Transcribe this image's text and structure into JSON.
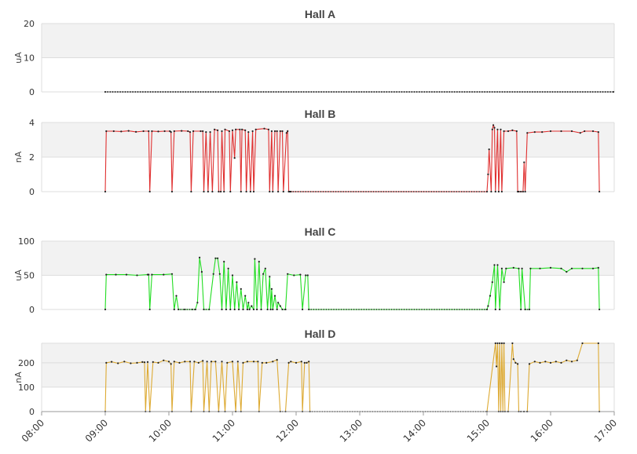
{
  "chart_data": {
    "type": "line",
    "x_axis": {
      "range": [
        "08:00",
        "17:00"
      ],
      "tick_labels": [
        "08:00",
        "09:00",
        "10:00",
        "11:00",
        "12:00",
        "13:00",
        "14:00",
        "15:00",
        "16:00",
        "17:00"
      ]
    },
    "grid": "alternating horizontal bands",
    "panels": [
      {
        "title": "Hall A",
        "ylabel": "uA",
        "ylim": [
          0,
          20
        ],
        "yticks": [
          "0",
          "10",
          "20"
        ],
        "color": "#888888",
        "points": [
          [
            "09:00",
            0
          ],
          [
            "17:00",
            0
          ]
        ]
      },
      {
        "title": "Hall B",
        "ylabel": "nA",
        "ylim": [
          0,
          4
        ],
        "yticks": [
          "0",
          "2",
          "4"
        ],
        "color": "#e03030",
        "points": [
          [
            "09:00",
            0
          ],
          [
            "09:01",
            3.5
          ],
          [
            "09:08",
            3.5
          ],
          [
            "09:15",
            3.48
          ],
          [
            "09:22",
            3.52
          ],
          [
            "09:29",
            3.46
          ],
          [
            "09:36",
            3.5
          ],
          [
            "09:41",
            3.5
          ],
          [
            "09:42",
            0
          ],
          [
            "09:44",
            3.5
          ],
          [
            "09:50",
            3.48
          ],
          [
            "09:56",
            3.5
          ],
          [
            "10:01",
            3.5
          ],
          [
            "10:02",
            3.45
          ],
          [
            "10:03",
            0
          ],
          [
            "10:05",
            3.5
          ],
          [
            "10:12",
            3.52
          ],
          [
            "10:18",
            3.5
          ],
          [
            "10:20",
            3.45
          ],
          [
            "10:21",
            0
          ],
          [
            "10:23",
            3.5
          ],
          [
            "10:30",
            3.5
          ],
          [
            "10:32",
            3.5
          ],
          [
            "10:33",
            0
          ],
          [
            "10:35",
            3.45
          ],
          [
            "10:37",
            0
          ],
          [
            "10:39",
            3.45
          ],
          [
            "10:41",
            0
          ],
          [
            "10:43",
            3.6
          ],
          [
            "10:46",
            3.55
          ],
          [
            "10:47",
            0
          ],
          [
            "10:49",
            0
          ],
          [
            "10:50",
            3.5
          ],
          [
            "10:52",
            0
          ],
          [
            "10:53",
            3.6
          ],
          [
            "10:57",
            3.5
          ],
          [
            "10:58",
            0
          ],
          [
            "11:00",
            3.55
          ],
          [
            "11:02",
            1.95
          ],
          [
            "11:03",
            3.6
          ],
          [
            "11:07",
            3.6
          ],
          [
            "11:08",
            0
          ],
          [
            "11:09",
            3.6
          ],
          [
            "11:12",
            3.55
          ],
          [
            "11:13",
            0
          ],
          [
            "11:15",
            3.45
          ],
          [
            "11:17",
            0
          ],
          [
            "11:19",
            3.5
          ],
          [
            "11:20",
            0
          ],
          [
            "11:22",
            3.6
          ],
          [
            "11:30",
            3.65
          ],
          [
            "11:34",
            3.6
          ],
          [
            "11:35",
            0
          ],
          [
            "11:37",
            3.5
          ],
          [
            "11:38",
            0
          ],
          [
            "11:40",
            3.5
          ],
          [
            "11:42",
            3.5
          ],
          [
            "11:43",
            0
          ],
          [
            "11:45",
            3.5
          ],
          [
            "11:47",
            3.5
          ],
          [
            "11:48",
            0
          ],
          [
            "11:51",
            3.4
          ],
          [
            "11:52",
            3.5
          ],
          [
            "11:53",
            0
          ],
          [
            "11:54",
            0
          ],
          [
            "11:55",
            0
          ],
          [
            "15:00",
            0
          ],
          [
            "15:01",
            1.0
          ],
          [
            "15:02",
            2.45
          ],
          [
            "15:04",
            0
          ],
          [
            "15:05",
            3.6
          ],
          [
            "15:06",
            3.85
          ],
          [
            "15:07",
            3.7
          ],
          [
            "15:08",
            0
          ],
          [
            "15:10",
            3.6
          ],
          [
            "15:11",
            0
          ],
          [
            "15:13",
            3.6
          ],
          [
            "15:14",
            0
          ],
          [
            "15:16",
            3.5
          ],
          [
            "15:20",
            3.5
          ],
          [
            "15:24",
            3.55
          ],
          [
            "15:28",
            3.5
          ],
          [
            "15:29",
            0
          ],
          [
            "15:30",
            0
          ],
          [
            "15:32",
            0
          ],
          [
            "15:34",
            0
          ],
          [
            "15:35",
            1.7
          ],
          [
            "15:36",
            0
          ],
          [
            "15:38",
            3.4
          ],
          [
            "15:45",
            3.45
          ],
          [
            "15:52",
            3.45
          ],
          [
            "16:00",
            3.5
          ],
          [
            "16:10",
            3.5
          ],
          [
            "16:20",
            3.5
          ],
          [
            "16:28",
            3.4
          ],
          [
            "16:32",
            3.5
          ],
          [
            "16:40",
            3.5
          ],
          [
            "16:45",
            3.45
          ],
          [
            "16:46",
            0
          ]
        ]
      },
      {
        "title": "Hall C",
        "ylabel": "uA",
        "ylim": [
          0,
          100
        ],
        "yticks": [
          "0",
          "50",
          "100"
        ],
        "color": "#22dd22",
        "points": [
          [
            "09:00",
            0
          ],
          [
            "09:01",
            51
          ],
          [
            "09:10",
            51
          ],
          [
            "09:20",
            51
          ],
          [
            "09:30",
            50
          ],
          [
            "09:40",
            51
          ],
          [
            "09:41",
            51
          ],
          [
            "09:42",
            0
          ],
          [
            "09:44",
            51
          ],
          [
            "09:55",
            51
          ],
          [
            "10:03",
            52
          ],
          [
            "10:05",
            0
          ],
          [
            "10:07",
            20
          ],
          [
            "10:09",
            0
          ],
          [
            "10:15",
            0
          ],
          [
            "10:22",
            0
          ],
          [
            "10:25",
            0
          ],
          [
            "10:27",
            10
          ],
          [
            "10:29",
            76
          ],
          [
            "10:31",
            55
          ],
          [
            "10:33",
            0
          ],
          [
            "10:38",
            0
          ],
          [
            "10:42",
            52
          ],
          [
            "10:44",
            75
          ],
          [
            "10:46",
            75
          ],
          [
            "10:48",
            52
          ],
          [
            "10:50",
            0
          ],
          [
            "10:52",
            70
          ],
          [
            "10:54",
            0
          ],
          [
            "10:56",
            60
          ],
          [
            "10:58",
            0
          ],
          [
            "11:00",
            50
          ],
          [
            "11:02",
            0
          ],
          [
            "11:04",
            40
          ],
          [
            "11:06",
            0
          ],
          [
            "11:08",
            30
          ],
          [
            "11:10",
            0
          ],
          [
            "11:12",
            20
          ],
          [
            "11:14",
            0
          ],
          [
            "11:15",
            10
          ],
          [
            "11:16",
            0
          ],
          [
            "11:18",
            5
          ],
          [
            "11:20",
            0
          ],
          [
            "11:21",
            74
          ],
          [
            "11:23",
            0
          ],
          [
            "11:25",
            70
          ],
          [
            "11:27",
            0
          ],
          [
            "11:29",
            52
          ],
          [
            "11:31",
            60
          ],
          [
            "11:33",
            0
          ],
          [
            "11:35",
            48
          ],
          [
            "11:36",
            0
          ],
          [
            "11:37",
            30
          ],
          [
            "11:38",
            0
          ],
          [
            "11:40",
            20
          ],
          [
            "11:42",
            0
          ],
          [
            "11:43",
            10
          ],
          [
            "11:45",
            5
          ],
          [
            "11:47",
            0
          ],
          [
            "11:50",
            0
          ],
          [
            "11:52",
            52
          ],
          [
            "11:58",
            50
          ],
          [
            "12:04",
            51
          ],
          [
            "12:06",
            0
          ],
          [
            "12:09",
            50
          ],
          [
            "12:11",
            50
          ],
          [
            "12:12",
            0
          ],
          [
            "15:00",
            0
          ],
          [
            "15:01",
            5
          ],
          [
            "15:03",
            20
          ],
          [
            "15:05",
            40
          ],
          [
            "15:07",
            65
          ],
          [
            "15:08",
            0
          ],
          [
            "15:10",
            65
          ],
          [
            "15:12",
            0
          ],
          [
            "15:14",
            60
          ],
          [
            "15:16",
            40
          ],
          [
            "15:18",
            60
          ],
          [
            "15:25",
            61
          ],
          [
            "15:30",
            60
          ],
          [
            "15:32",
            0
          ],
          [
            "15:33",
            60
          ],
          [
            "15:36",
            0
          ],
          [
            "15:40",
            0
          ],
          [
            "15:41",
            60
          ],
          [
            "15:50",
            60
          ],
          [
            "16:00",
            61
          ],
          [
            "16:10",
            60
          ],
          [
            "16:15",
            55
          ],
          [
            "16:20",
            60
          ],
          [
            "16:30",
            60
          ],
          [
            "16:40",
            60
          ],
          [
            "16:45",
            61
          ],
          [
            "16:46",
            0
          ]
        ]
      },
      {
        "title": "Hall D",
        "ylabel": "nA",
        "ylim": [
          0,
          280
        ],
        "yticks": [
          "0",
          "100",
          "200"
        ],
        "color": "#ddaa33",
        "points": [
          [
            "09:00",
            0
          ],
          [
            "09:01",
            200
          ],
          [
            "09:06",
            204
          ],
          [
            "09:12",
            198
          ],
          [
            "09:18",
            205
          ],
          [
            "09:24",
            198
          ],
          [
            "09:30",
            200
          ],
          [
            "09:35",
            203
          ],
          [
            "09:37",
            202
          ],
          [
            "09:38",
            0
          ],
          [
            "09:40",
            203
          ],
          [
            "09:42",
            0
          ],
          [
            "09:45",
            203
          ],
          [
            "09:50",
            200
          ],
          [
            "09:55",
            210
          ],
          [
            "10:00",
            205
          ],
          [
            "10:02",
            195
          ],
          [
            "10:03",
            0
          ],
          [
            "10:05",
            205
          ],
          [
            "10:10",
            200
          ],
          [
            "10:15",
            205
          ],
          [
            "10:20",
            205
          ],
          [
            "10:21",
            0
          ],
          [
            "10:24",
            205
          ],
          [
            "10:28",
            200
          ],
          [
            "10:32",
            208
          ],
          [
            "10:33",
            0
          ],
          [
            "10:36",
            205
          ],
          [
            "10:38",
            0
          ],
          [
            "10:40",
            205
          ],
          [
            "10:44",
            205
          ],
          [
            "10:47",
            0
          ],
          [
            "10:50",
            205
          ],
          [
            "10:53",
            0
          ],
          [
            "10:55",
            200
          ],
          [
            "11:00",
            205
          ],
          [
            "11:03",
            0
          ],
          [
            "11:05",
            205
          ],
          [
            "11:08",
            0
          ],
          [
            "11:10",
            200
          ],
          [
            "11:14",
            205
          ],
          [
            "11:20",
            205
          ],
          [
            "11:24",
            205
          ],
          [
            "11:25",
            0
          ],
          [
            "11:28",
            200
          ],
          [
            "11:32",
            200
          ],
          [
            "11:38",
            205
          ],
          [
            "11:42",
            212
          ],
          [
            "11:45",
            0
          ],
          [
            "11:50",
            0
          ],
          [
            "11:53",
            200
          ],
          [
            "11:55",
            205
          ],
          [
            "12:00",
            200
          ],
          [
            "12:05",
            205
          ],
          [
            "12:06",
            0
          ],
          [
            "12:08",
            200
          ],
          [
            "12:10",
            200
          ],
          [
            "12:12",
            205
          ],
          [
            "12:13",
            0
          ],
          [
            "15:00",
            0
          ],
          [
            "15:08",
            280
          ],
          [
            "15:09",
            185
          ],
          [
            "15:10",
            280
          ],
          [
            "15:11",
            0
          ],
          [
            "15:12",
            280
          ],
          [
            "15:13",
            0
          ],
          [
            "15:14",
            280
          ],
          [
            "15:15",
            0
          ],
          [
            "15:16",
            280
          ],
          [
            "15:17",
            0
          ],
          [
            "15:20",
            0
          ],
          [
            "15:24",
            280
          ],
          [
            "15:25",
            215
          ],
          [
            "15:27",
            200
          ],
          [
            "15:29",
            195
          ],
          [
            "15:30",
            0
          ],
          [
            "15:32",
            0
          ],
          [
            "15:35",
            0
          ],
          [
            "15:38",
            0
          ],
          [
            "15:40",
            195
          ],
          [
            "15:45",
            205
          ],
          [
            "15:50",
            200
          ],
          [
            "15:55",
            205
          ],
          [
            "16:00",
            200
          ],
          [
            "16:05",
            205
          ],
          [
            "16:10",
            200
          ],
          [
            "16:15",
            210
          ],
          [
            "16:20",
            205
          ],
          [
            "16:25",
            210
          ],
          [
            "16:30",
            280
          ],
          [
            "16:45",
            280
          ],
          [
            "16:46",
            0
          ]
        ]
      }
    ]
  }
}
